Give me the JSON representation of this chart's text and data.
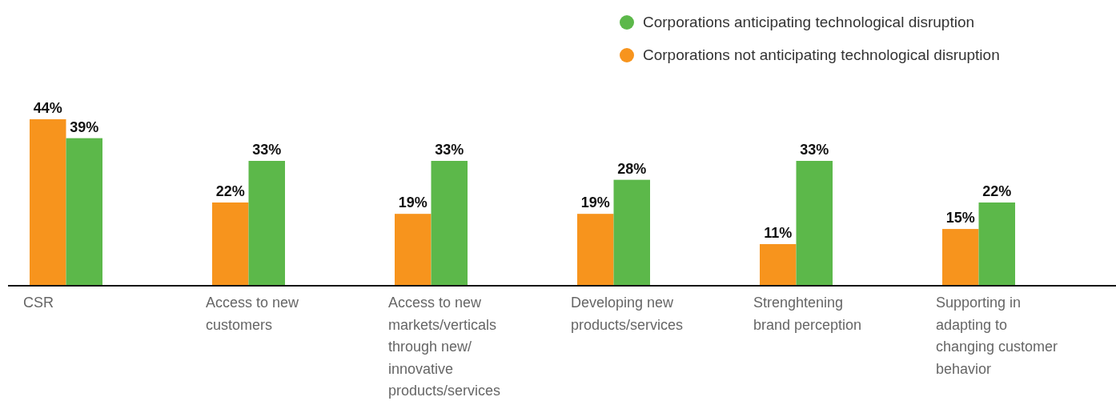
{
  "chart_data": {
    "type": "bar",
    "categories": [
      "CSR",
      "Access to new customers",
      "Access to new markets/verticals through new/ innovative products/services",
      "Developing new products/services",
      "Strenghtening brand perception",
      "Supporting in adapting to changing customer behavior"
    ],
    "series": [
      {
        "name": "Corporations not anticipating technological disruption",
        "color": "#f7941d",
        "values": [
          44,
          22,
          19,
          19,
          11,
          15
        ],
        "value_labels": [
          "44%",
          "22%",
          "19%",
          "19%",
          "11%",
          "15%"
        ]
      },
      {
        "name": "Corporations anticipating technological disruption",
        "color": "#5cb84a",
        "values": [
          39,
          33,
          33,
          28,
          33,
          22
        ],
        "value_labels": [
          "39%",
          "33%",
          "33%",
          "28%",
          "33%",
          "22%"
        ]
      }
    ],
    "relative": false,
    "legend": "top right"
  }
}
